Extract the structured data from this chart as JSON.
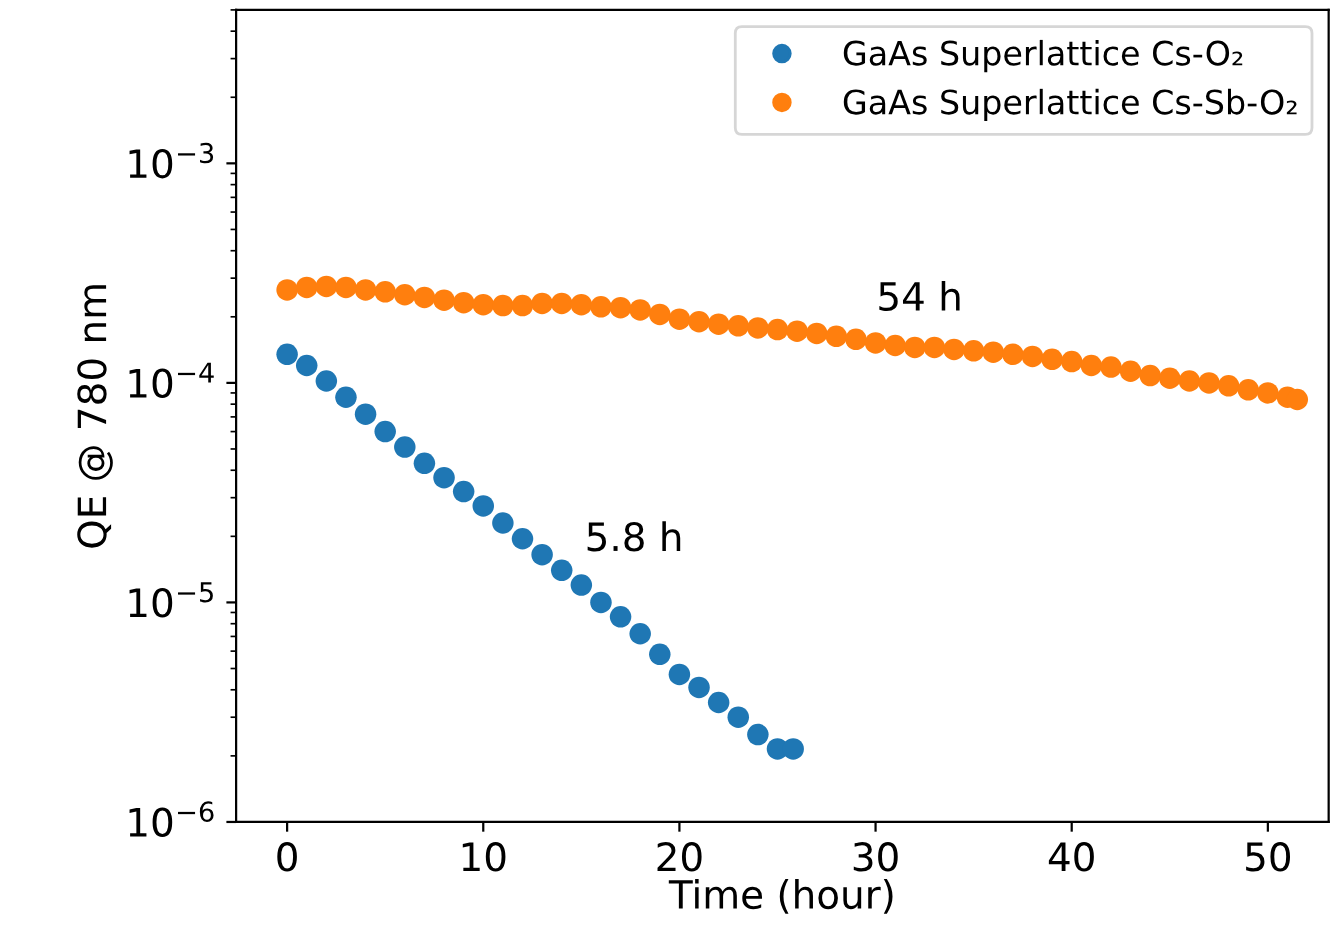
{
  "chart_data": {
    "type": "scatter",
    "xlabel": "Time (hour)",
    "ylabel": "QE @ 780 nm",
    "log": "y",
    "xlim": [
      -2.6,
      53.1
    ],
    "xticks": [
      0,
      10,
      20,
      30,
      40,
      50
    ],
    "ylim": [
      1e-06,
      0.005
    ],
    "yticks": [
      {
        "value": 1e-06,
        "label": "10$^{−6}$"
      },
      {
        "value": 1e-05,
        "label": "10$^{−5}$"
      },
      {
        "value": 0.0001,
        "label": "10$^{−4}$"
      },
      {
        "value": 0.001,
        "label": "10$^{−3}$"
      }
    ],
    "legend": "top right",
    "marker": "circle",
    "grid": false,
    "series": [
      {
        "name": "GaAs Superlattice Cs-O₂",
        "color": "#1f77b4",
        "x": [
          0,
          1,
          2,
          3,
          4,
          5,
          6,
          7,
          8,
          9,
          10,
          11,
          12,
          13,
          14,
          15,
          16,
          17,
          18,
          19,
          20,
          21,
          22,
          23,
          24,
          25,
          25.8
        ],
        "values": [
          0.000135,
          0.00012,
          0.000102,
          8.6e-05,
          7.2e-05,
          6e-05,
          5.1e-05,
          4.3e-05,
          3.7e-05,
          3.2e-05,
          2.75e-05,
          2.3e-05,
          1.95e-05,
          1.65e-05,
          1.4e-05,
          1.2e-05,
          1e-05,
          8.6e-06,
          7.2e-06,
          5.8e-06,
          4.7e-06,
          4.1e-06,
          3.5e-06,
          3e-06,
          2.5e-06,
          2.15e-06,
          2.15e-06
        ]
      },
      {
        "name": "GaAs Superlattice Cs-Sb-O₂",
        "color": "#ff7f0e",
        "x": [
          0,
          1,
          2,
          3,
          4,
          5,
          6,
          7,
          8,
          9,
          10,
          11,
          12,
          13,
          14,
          15,
          16,
          17,
          18,
          19,
          20,
          21,
          22,
          23,
          24,
          25,
          26,
          27,
          28,
          29,
          30,
          31,
          32,
          33,
          34,
          35,
          36,
          37,
          38,
          39,
          40,
          41,
          42,
          43,
          44,
          45,
          46,
          47,
          48,
          49,
          50,
          51,
          51.5
        ],
        "values": [
          0.000265,
          0.000272,
          0.000275,
          0.000272,
          0.000265,
          0.00026,
          0.000252,
          0.000245,
          0.000238,
          0.000232,
          0.000227,
          0.000225,
          0.000225,
          0.00023,
          0.00023,
          0.000227,
          0.000222,
          0.00022,
          0.000215,
          0.000205,
          0.000195,
          0.00019,
          0.000185,
          0.000182,
          0.000178,
          0.000175,
          0.000172,
          0.000168,
          0.000163,
          0.000158,
          0.000152,
          0.000148,
          0.000145,
          0.000145,
          0.000142,
          0.00014,
          0.000138,
          0.000135,
          0.000132,
          0.000128,
          0.000125,
          0.00012,
          0.000118,
          0.000113,
          0.000108,
          0.000105,
          0.000102,
          0.0001,
          9.7e-05,
          9.3e-05,
          9e-05,
          8.6e-05,
          8.4e-05
        ]
      }
    ],
    "annotations": [
      "5.8 h",
      "54 h"
    ]
  }
}
